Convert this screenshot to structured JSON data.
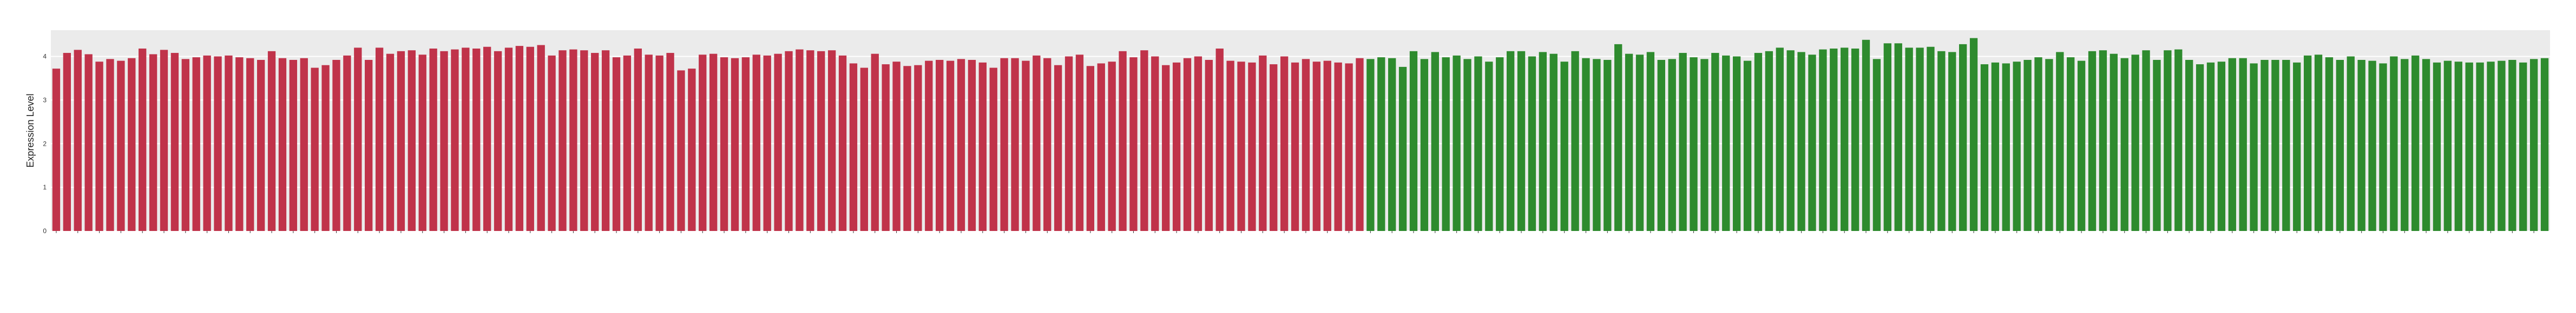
{
  "chart_data": {
    "type": "bar",
    "title": "",
    "xlabel": "",
    "ylabel": "Expression Level",
    "ylim": [
      0,
      4.6
    ],
    "yticks": [
      0,
      1,
      2,
      3,
      4
    ],
    "grid": true,
    "legend": "none",
    "colors": {
      "group1": "#C0334A",
      "group2": "#2E8B2E",
      "panel": "#EBEBEB",
      "grid": "#FFFFFF"
    },
    "series": [
      {
        "values": [
          3.72,
          4.08,
          4.15,
          4.05,
          3.88,
          3.94,
          3.9,
          3.96,
          4.18,
          4.05,
          4.15,
          4.08,
          3.94,
          3.98,
          4.02,
          4.0,
          4.02,
          3.98,
          3.96,
          3.92,
          4.12,
          3.96,
          3.92,
          3.96,
          3.74,
          3.8,
          3.92,
          4.02,
          4.2,
          3.92,
          4.2,
          4.06,
          4.12,
          4.14,
          4.04,
          4.18,
          4.12,
          4.16,
          4.2,
          4.18,
          4.22,
          4.12,
          4.2,
          4.24,
          4.22,
          4.26,
          4.02,
          4.14,
          4.16,
          4.14,
          4.08,
          4.14,
          3.98,
          4.02,
          4.18,
          4.04,
          4.02,
          4.08,
          3.68,
          3.72,
          4.04,
          4.06,
          3.98,
          3.96,
          3.98,
          4.04,
          4.02,
          4.06,
          4.12,
          4.16,
          4.14,
          4.12,
          4.14,
          4.02,
          3.84,
          3.74,
          4.06,
          3.82,
          3.88,
          3.78,
          3.8,
          3.9,
          3.92,
          3.9,
          3.94,
          3.92,
          3.86,
          3.74,
          3.96,
          3.96,
          3.9,
          4.02,
          3.96,
          3.8,
          4.0,
          4.04,
          3.78,
          3.84,
          3.88,
          4.12,
          3.98,
          4.14,
          4.0,
          3.8,
          3.86,
          3.96,
          4.0,
          3.92,
          4.18,
          3.9,
          3.88,
          3.86,
          4.02,
          3.82,
          4.0,
          3.86,
          3.94,
          3.88,
          3.9,
          3.86,
          3.84,
          3.96
        ]
      },
      {
        "values": [
          3.94,
          3.98,
          3.96,
          3.76,
          4.12,
          3.94,
          4.1,
          3.98,
          4.02,
          3.94,
          4.0,
          3.88,
          3.98,
          4.12,
          4.12,
          4.0,
          4.1,
          4.06,
          3.88,
          4.12,
          3.96,
          3.94,
          3.92,
          4.28,
          4.06,
          4.04,
          4.1,
          3.92,
          3.94,
          4.08,
          3.98,
          3.94,
          4.08,
          4.02,
          4.0,
          3.9,
          4.08,
          4.12,
          4.2,
          4.14,
          4.1,
          4.04,
          4.16,
          4.18,
          4.2,
          4.18,
          4.38,
          3.94,
          4.3,
          4.3,
          4.2,
          4.2,
          4.22,
          4.12,
          4.1,
          4.28,
          4.42,
          3.82,
          3.86,
          3.84,
          3.88,
          3.92,
          3.98,
          3.94,
          4.1,
          3.98,
          3.9,
          4.12,
          4.14,
          4.06,
          3.96,
          4.04,
          4.14,
          3.92,
          4.14,
          4.16,
          3.92,
          3.82,
          3.86,
          3.88,
          3.96,
          3.96,
          3.84,
          3.92,
          3.92,
          3.92,
          3.86,
          4.02,
          4.04,
          3.98,
          3.92,
          4.0,
          3.92,
          3.9,
          3.84,
          4.0,
          3.94,
          4.02,
          3.94,
          3.86,
          3.9,
          3.88,
          3.86,
          3.86,
          3.88,
          3.9,
          3.92,
          3.86,
          3.94,
          3.96
        ]
      }
    ]
  }
}
